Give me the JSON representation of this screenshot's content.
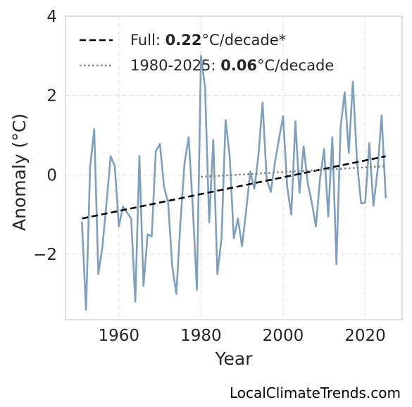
{
  "chart_data": {
    "type": "line",
    "xlabel": "Year",
    "ylabel": "Anomaly (°C)",
    "xlim": [
      1947,
      2029
    ],
    "ylim": [
      -3.65,
      4.0
    ],
    "xticks": [
      1960,
      1980,
      2000,
      2020
    ],
    "yticks": [
      4,
      2,
      0,
      -2
    ],
    "ytick_labels": [
      "4",
      "2",
      "0",
      "−2"
    ],
    "grid": true,
    "legend_position": "top-left",
    "colors": {
      "series": "#7f9fbf",
      "full_trend": "#000000",
      "recent_trend": "#808080"
    },
    "series": [
      {
        "values_x": [
          1951,
          1952,
          1953,
          1954,
          1955,
          1956,
          1957,
          1958,
          1959,
          1960,
          1961,
          1962,
          1963,
          1964,
          1965,
          1966,
          1967,
          1968,
          1969,
          1970,
          1971,
          1972,
          1973,
          1974,
          1975,
          1976,
          1977,
          1978,
          1979,
          1980,
          1981,
          1982,
          1983,
          1984,
          1985,
          1986,
          1987,
          1988,
          1989,
          1990,
          1991,
          1992,
          1993,
          1994,
          1995,
          1996,
          1997,
          1998,
          1999,
          2000,
          2001,
          2002,
          2003,
          2004,
          2005,
          2006,
          2007,
          2008,
          2009,
          2010,
          2011,
          2012,
          2013,
          2014,
          2015,
          2016,
          2017,
          2018,
          2019,
          2020,
          2021,
          2022,
          2023,
          2024,
          2025
        ],
        "values": [
          -1.2,
          -3.4,
          0.2,
          1.15,
          -2.5,
          -1.8,
          -0.7,
          0.47,
          0.22,
          -1.3,
          -0.8,
          -0.95,
          -1.1,
          -3.2,
          0.48,
          -2.8,
          -1.5,
          -1.55,
          0.6,
          0.78,
          -0.3,
          -0.7,
          -2.3,
          -3.0,
          -1.2,
          0.3,
          0.95,
          -0.8,
          -2.9,
          3.0,
          2.2,
          -1.2,
          0.88,
          -2.5,
          -1.6,
          1.38,
          0.45,
          -1.6,
          -1.1,
          -1.8,
          -0.9,
          0.08,
          -0.35,
          0.5,
          1.82,
          -0.1,
          -0.43,
          0.3,
          0.9,
          1.48,
          -0.3,
          -1.0,
          1.35,
          -0.45,
          0.72,
          -0.2,
          -0.7,
          -1.3,
          -0.1,
          0.65,
          -1.05,
          0.95,
          -2.25,
          1.2,
          2.08,
          0.55,
          2.35,
          0.35,
          -0.72,
          -0.7,
          0.8,
          -0.78,
          0.1,
          1.5,
          -0.57
        ]
      }
    ],
    "trends": [
      {
        "label_prefix": "Full: ",
        "value": "0.22",
        "label_suffix": "°C/decade*",
        "style": "dashed",
        "x": [
          1951,
          2025
        ],
        "y": [
          -1.1,
          0.47
        ]
      },
      {
        "label_prefix": "1980-2025: ",
        "value": "0.06",
        "label_suffix": "°C/decade",
        "style": "dotted",
        "x": [
          1980,
          2025
        ],
        "y": [
          -0.05,
          0.22
        ]
      }
    ]
  },
  "watermark": "LocalClimateTrends.com"
}
